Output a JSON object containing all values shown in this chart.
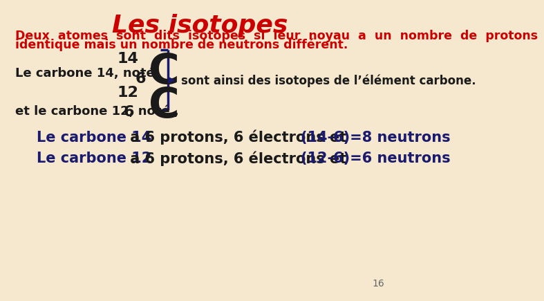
{
  "title": "Les isotopes",
  "title_color": "#cc0000",
  "title_fontsize": 26,
  "bg_color": "#f5e8ce",
  "subtitle_line1": "Deux  atomes  sont  dits  isotopes  si  leur  noyau  a  un  nombre  de  protons",
  "subtitle_line2": "identique mais un nombre de neutrons différent.",
  "subtitle_color": "#cc0000",
  "subtitle_fontsize": 12.5,
  "text_dark": "#1a1a1a",
  "text_red": "#cc0000",
  "text_navy": "#1a1a6e",
  "bracket_color": "#1a1a6e",
  "line1_label": "Le carbone 14, noté",
  "line1_mass": "14",
  "line1_symbol": "C",
  "line1_atomic": "6",
  "line2_mass": "12",
  "line2_symbol": "C",
  "line2_label": "et le carbone 12, noté ,",
  "line2_atomic": "6",
  "bracket_text": "sont ainsi des isotopes de l’élément carbone.",
  "bottom_line1_p1": "Le carbone 14",
  "bottom_line1_p2": " a 6 protons, 6 électrons et ",
  "bottom_line1_p3": "(14-6)=8 neutrons",
  "bottom_line2_p1": "Le carbone 12",
  "bottom_line2_p2": " a 6 protons, 6 électrons et ",
  "bottom_line2_p3": "(12-6)=6 neutrons",
  "page_number": "16"
}
